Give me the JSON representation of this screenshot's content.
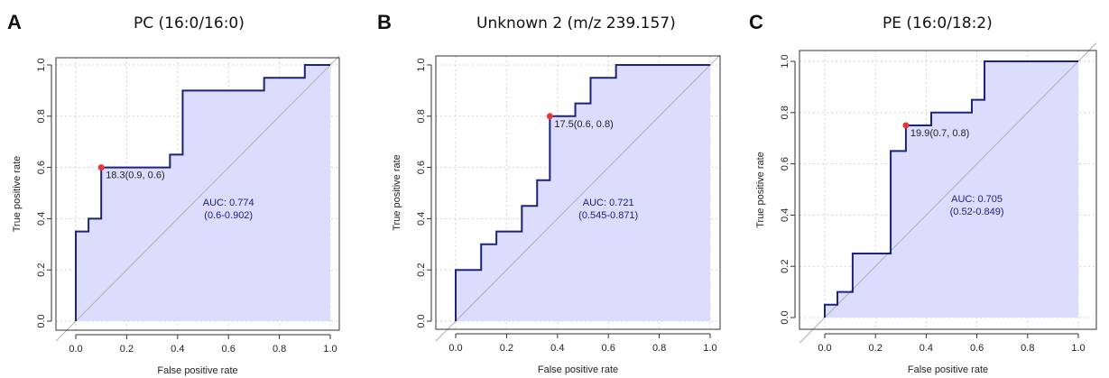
{
  "chart_data": [
    {
      "type": "line",
      "panel_letter": "A",
      "title": "PC (16:0/16:0)",
      "xlabel": "False positive rate",
      "ylabel": "True positive rate",
      "xlim": [
        0,
        1
      ],
      "ylim": [
        0,
        1
      ],
      "xticks": [
        "0.0",
        "0.2",
        "0.4",
        "0.6",
        "0.8",
        "1.0"
      ],
      "yticks": [
        "0.0",
        "0.2",
        "0.4",
        "0.6",
        "0.8",
        "1.0"
      ],
      "grid": true,
      "series": [
        {
          "x": [
            0.0,
            0.0,
            0.05,
            0.05,
            0.1,
            0.1,
            0.37,
            0.37,
            0.42,
            0.42,
            0.74,
            0.74,
            0.9,
            0.9,
            1.0
          ],
          "y": [
            0.0,
            0.35,
            0.35,
            0.4,
            0.4,
            0.6,
            0.6,
            0.65,
            0.65,
            0.9,
            0.9,
            0.95,
            0.95,
            1.0,
            1.0
          ]
        }
      ],
      "threshold_point": {
        "x": 0.1,
        "y": 0.6,
        "label": "18.3(0.9, 0.6)"
      },
      "auc_text": "AUC: 0.774",
      "ci_text": "(0.6-0.902)",
      "colors": {
        "curve": "#1a237e",
        "fill": "#dcdcfc",
        "point": "#e53935",
        "diagonal": "#b0b0b0",
        "text": "#1a237e"
      }
    },
    {
      "type": "line",
      "panel_letter": "B",
      "title": "Unknown 2 (m/z 239.157)",
      "xlabel": "False positive rate",
      "ylabel": "True positive rate",
      "xlim": [
        0,
        1
      ],
      "ylim": [
        0,
        1
      ],
      "xticks": [
        "0.0",
        "0.2",
        "0.4",
        "0.6",
        "0.8",
        "1.0"
      ],
      "yticks": [
        "0.0",
        "0.2",
        "0.4",
        "0.6",
        "0.8",
        "1.0"
      ],
      "grid": true,
      "series": [
        {
          "x": [
            0.0,
            0.0,
            0.1,
            0.1,
            0.16,
            0.16,
            0.26,
            0.26,
            0.32,
            0.32,
            0.37,
            0.37,
            0.47,
            0.47,
            0.53,
            0.53,
            0.63,
            0.63,
            1.0
          ],
          "y": [
            0.0,
            0.2,
            0.2,
            0.3,
            0.3,
            0.35,
            0.35,
            0.45,
            0.45,
            0.55,
            0.55,
            0.8,
            0.8,
            0.85,
            0.85,
            0.95,
            0.95,
            1.0,
            1.0
          ]
        }
      ],
      "threshold_point": {
        "x": 0.37,
        "y": 0.8,
        "label": "17.5(0.6, 0.8)"
      },
      "auc_text": "AUC: 0.721",
      "ci_text": "(0.545-0.871)",
      "colors": {
        "curve": "#1a237e",
        "fill": "#dcdcfc",
        "point": "#e53935",
        "diagonal": "#b0b0b0",
        "text": "#1a237e"
      }
    },
    {
      "type": "line",
      "panel_letter": "C",
      "title": "PE (16:0/18:2)",
      "xlabel": "False positive rate",
      "ylabel": "True positive rate",
      "xlim": [
        0,
        1
      ],
      "ylim": [
        0,
        1
      ],
      "xticks": [
        "0.0",
        "0.2",
        "0.4",
        "0.6",
        "0.8",
        "1.0"
      ],
      "yticks": [
        "0.0",
        "0.2",
        "0.4",
        "0.6",
        "0.8",
        "1.0"
      ],
      "grid": true,
      "series": [
        {
          "x": [
            0.0,
            0.0,
            0.05,
            0.05,
            0.11,
            0.11,
            0.26,
            0.26,
            0.32,
            0.32,
            0.42,
            0.42,
            0.58,
            0.58,
            0.63,
            0.63,
            1.0
          ],
          "y": [
            0.0,
            0.05,
            0.05,
            0.1,
            0.1,
            0.25,
            0.25,
            0.65,
            0.65,
            0.75,
            0.75,
            0.8,
            0.8,
            0.85,
            0.85,
            1.0,
            1.0
          ]
        }
      ],
      "threshold_point": {
        "x": 0.32,
        "y": 0.75,
        "label": "19.9(0.7, 0.8)"
      },
      "auc_text": "AUC: 0.705",
      "ci_text": "(0.52-0.849)",
      "colors": {
        "curve": "#1a237e",
        "fill": "#dcdcfc",
        "point": "#e53935",
        "diagonal": "#b0b0b0",
        "text": "#1a237e"
      }
    }
  ]
}
